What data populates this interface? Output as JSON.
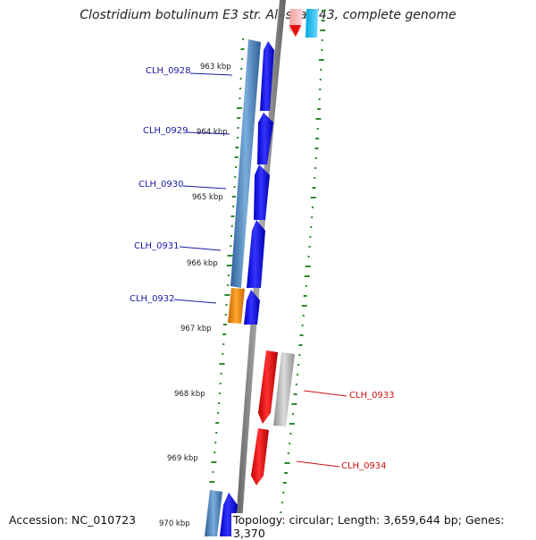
{
  "header": {
    "title": "Clostridium botulinum E3 str. Alaska E43, complete genome"
  },
  "footer": {
    "accession": "Accession: NC_010723",
    "topology": "Topology: circular; Length: 3,659,644 bp; Genes: 3,370"
  },
  "colors": {
    "forward_cds": "#0a0ae8",
    "reverse_cds": "#e41010",
    "outer_ring": "#4a80b8",
    "orange_feature": "#f08c10",
    "grey_feature": "#b8b8b8",
    "backbone": "#8c8c8c",
    "gc_ticks": "#2a8a2a",
    "label_blue": "#1a1aa6",
    "label_red": "#cc1111"
  },
  "position_labels": [
    "963 kbp",
    "964 kbp",
    "965 kbp",
    "966 kbp",
    "967 kbp",
    "968 kbp",
    "969 kbp",
    "970 kbp"
  ],
  "gene_labels": {
    "forward": [
      "CLH_0928",
      "CLH_0929",
      "CLH_0930",
      "CLH_0931",
      "CLH_0932"
    ],
    "reverse": [
      "CLH_0933",
      "CLH_0934"
    ]
  }
}
